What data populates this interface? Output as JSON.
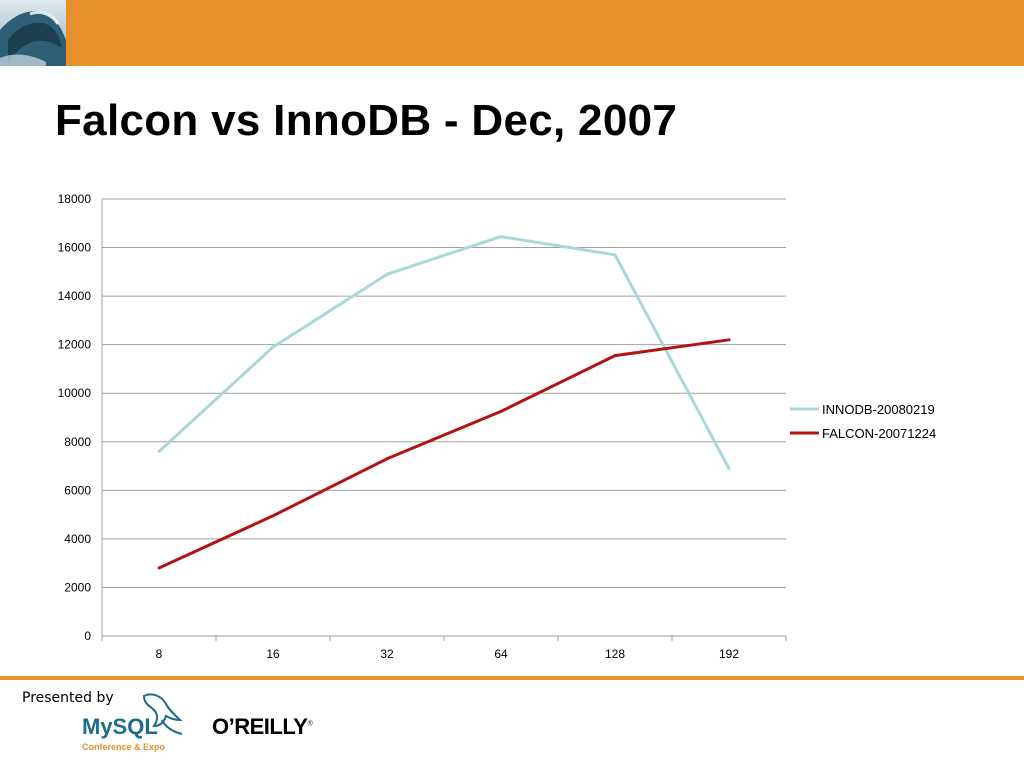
{
  "colors": {
    "header_orange": "#E8902C",
    "footer_line": "#E8902C",
    "innodb_line": "#A9D8DB",
    "falcon_line": "#B21414",
    "grid": "#A0A0A0",
    "mysql_blue": "#1C6C8C",
    "mysql_orange": "#E8902C"
  },
  "icons": {
    "header": "wave-photo-icon",
    "mysql": "mysql-dolphin-icon"
  },
  "slide": {
    "title": "Falcon vs InnoDB - Dec, 2007"
  },
  "footer": {
    "presented_by": "Presented by",
    "mysql_brand": "MySQL",
    "mysql_subtitle": "Conference & Expo",
    "oreilly_brand": "O’REILLY",
    "oreilly_mark": "®"
  },
  "chart_data": {
    "type": "line",
    "title": "",
    "xlabel": "",
    "ylabel": "",
    "categories": [
      "8",
      "16",
      "32",
      "64",
      "128",
      "192"
    ],
    "ylim": [
      0,
      18000
    ],
    "yticks": [
      0,
      2000,
      4000,
      6000,
      8000,
      10000,
      12000,
      14000,
      16000,
      18000
    ],
    "grid": true,
    "legend_position": "right",
    "series": [
      {
        "name": "INNODB-20080219",
        "color": "#A9D8DB",
        "values": [
          7600,
          11900,
          14900,
          16450,
          15700,
          6900
        ]
      },
      {
        "name": "FALCON-20071224",
        "color": "#B21414",
        "values": [
          2800,
          4950,
          7300,
          9250,
          11550,
          12200
        ]
      }
    ]
  }
}
